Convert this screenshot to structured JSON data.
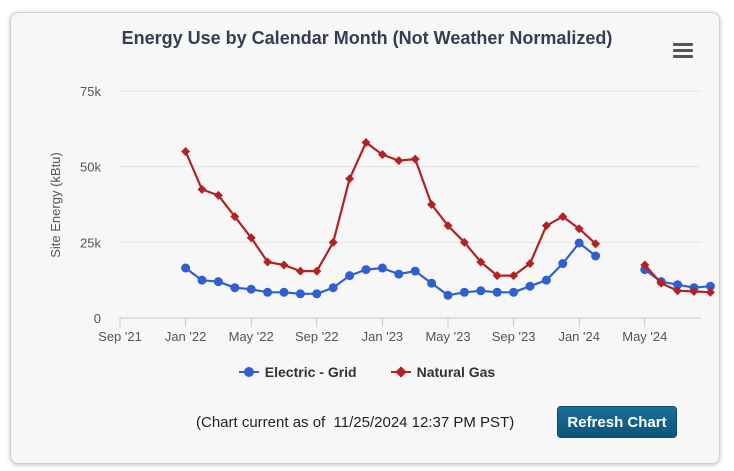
{
  "chart_data": {
    "type": "line",
    "title": "Energy Use by Calendar Month (Not Weather Normalized)",
    "xlabel": "",
    "ylabel": "Site Energy (kBtu)",
    "ylim": [
      0,
      75000
    ],
    "yticks": [
      0,
      25000,
      50000,
      75000
    ],
    "ytick_labels": [
      "0",
      "25k",
      "50k",
      "75k"
    ],
    "x_start": "2021-09",
    "x": [
      "2022-01",
      "2022-02",
      "2022-03",
      "2022-04",
      "2022-05",
      "2022-06",
      "2022-07",
      "2022-08",
      "2022-09",
      "2022-10",
      "2022-11",
      "2022-12",
      "2023-01",
      "2023-02",
      "2023-03",
      "2023-04",
      "2023-05",
      "2023-06",
      "2023-07",
      "2023-08",
      "2023-09",
      "2023-10",
      "2023-11",
      "2023-12",
      "2024-01",
      "2024-02",
      "2024-03",
      "2024-04",
      "2024-05",
      "2024-06",
      "2024-07",
      "2024-08",
      "2024-09"
    ],
    "xticks": [
      "2021-09",
      "2022-01",
      "2022-05",
      "2022-09",
      "2023-01",
      "2023-05",
      "2023-09",
      "2024-01",
      "2024-05"
    ],
    "xtick_labels": [
      "Sep '21",
      "Jan '22",
      "May '22",
      "Sep '22",
      "Jan '23",
      "May '23",
      "Sep '23",
      "Jan '24",
      "May '24"
    ],
    "grid": true,
    "legend_position": "bottom-center",
    "series": [
      {
        "name": "Electric - Grid",
        "color": "#2f5fd0",
        "marker": "circle",
        "values": [
          16500,
          12500,
          12000,
          10000,
          9500,
          8500,
          8500,
          8000,
          8000,
          10000,
          14000,
          16000,
          16500,
          14500,
          15500,
          11500,
          7500,
          8500,
          9000,
          8500,
          8500,
          10500,
          12500,
          18000,
          24800,
          20500,
          null,
          null,
          16000,
          12000,
          11000,
          10000,
          10500
        ]
      },
      {
        "name": "Natural Gas",
        "color": "#b22222",
        "marker": "diamond",
        "values": [
          55000,
          42500,
          40500,
          33500,
          26500,
          18500,
          17500,
          15500,
          15500,
          25000,
          46000,
          58000,
          54000,
          52000,
          52500,
          37500,
          30500,
          25000,
          18500,
          14000,
          14000,
          18000,
          30500,
          33500,
          29500,
          24500,
          null,
          null,
          17500,
          11500,
          9000,
          8800,
          8500
        ]
      }
    ]
  },
  "menu": {
    "icon": "hamburger-menu-icon"
  },
  "footer": {
    "current_as_of": "(Chart current as of  11/25/2024 12:37 PM PST)",
    "refresh_label": "Refresh Chart"
  }
}
